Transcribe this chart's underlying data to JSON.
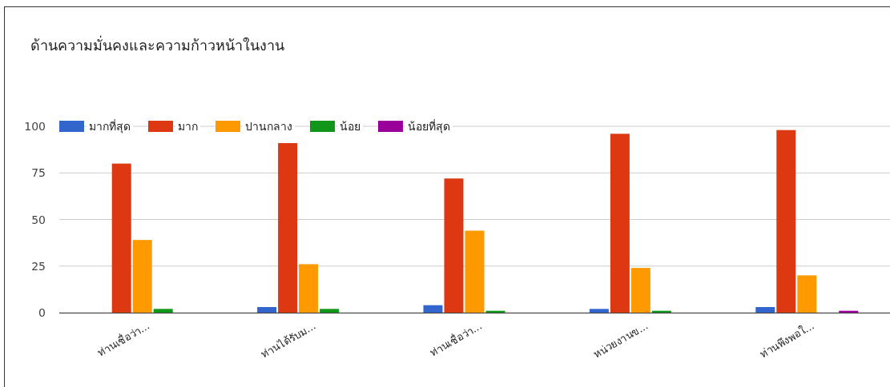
{
  "chart_data": {
    "type": "bar",
    "title": "ด้านความมั่นคงและความก้าวหน้าในงาน",
    "categories": [
      "ท่านเชื่อว่า...",
      "ท่านได้รับม...",
      "ท่านเชื่อว่า...",
      "หน่วยงานข...",
      "ท่านพึงพอใ..."
    ],
    "series": [
      {
        "name": "มากที่สุด",
        "color": "#3366cc",
        "values": [
          0,
          3,
          4,
          2,
          3
        ]
      },
      {
        "name": "มาก",
        "color": "#dc3912",
        "values": [
          80,
          91,
          72,
          96,
          98
        ]
      },
      {
        "name": "ปานกลาง",
        "color": "#ff9900",
        "values": [
          39,
          26,
          44,
          24,
          20
        ]
      },
      {
        "name": "น้อย",
        "color": "#109618",
        "values": [
          2,
          2,
          1,
          1,
          0
        ]
      },
      {
        "name": "น้อยที่สุด",
        "color": "#990099",
        "values": [
          0,
          0,
          0,
          0,
          1
        ]
      }
    ],
    "ylim": [
      0,
      100
    ],
    "yticks": [
      0,
      25,
      50,
      75,
      100
    ],
    "grid": "y",
    "legend": "top"
  }
}
